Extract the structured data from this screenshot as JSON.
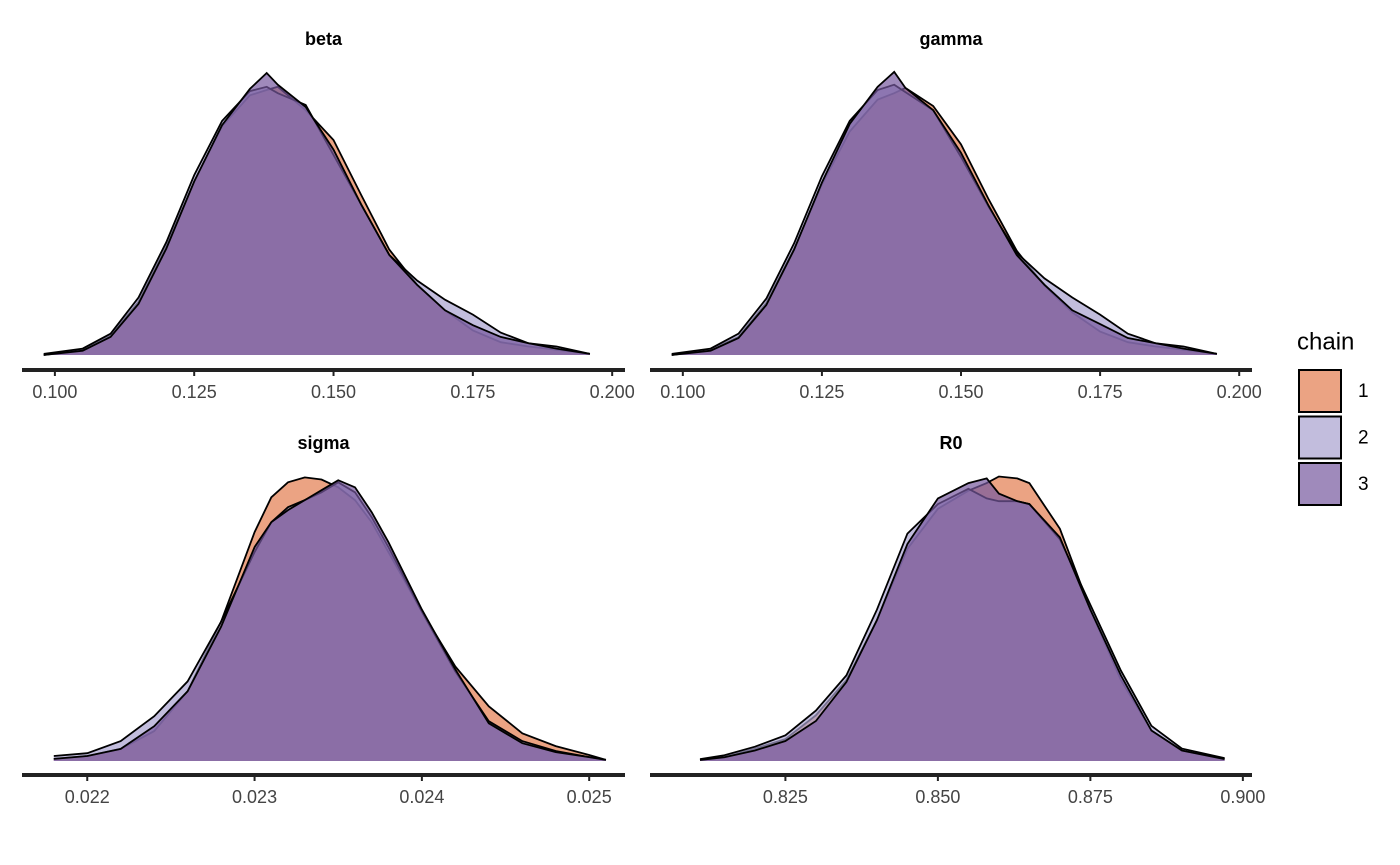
{
  "chart_data": [
    {
      "type": "density",
      "title": "beta",
      "x": [
        0.098,
        0.105,
        0.11,
        0.115,
        0.12,
        0.125,
        0.13,
        0.135,
        0.138,
        0.14,
        0.145,
        0.15,
        0.155,
        0.16,
        0.165,
        0.17,
        0.175,
        0.18,
        0.185,
        0.19,
        0.196
      ],
      "series": [
        {
          "values": [
            0,
            0.5,
            1.8,
            5.0,
            10.2,
            16.3,
            21.5,
            24.4,
            24.9,
            25.2,
            23.0,
            20.2,
            15.0,
            9.9,
            6.6,
            4.2,
            2.3,
            1.2,
            0.8,
            0.5,
            0.1
          ]
        },
        {
          "values": [
            0.1,
            0.6,
            2.0,
            5.4,
            10.6,
            16.9,
            22.0,
            24.8,
            25.2,
            24.6,
            23.5,
            18.8,
            14.1,
            9.4,
            7.0,
            5.2,
            3.8,
            2.1,
            1.1,
            0.8,
            0.1
          ]
        },
        {
          "values": [
            0,
            0.4,
            1.7,
            4.8,
            10.0,
            16.3,
            21.6,
            25.0,
            26.5,
            25.4,
            23.3,
            19.3,
            14.1,
            9.4,
            6.6,
            4.2,
            2.8,
            1.7,
            1.1,
            0.6,
            0.1
          ]
        }
      ],
      "xlim": [
        0.0941,
        0.2023
      ],
      "xticks": [
        {
          "value": 0.1,
          "label": "0.100"
        },
        0.125,
        {
          "value": 0.15,
          "label": "0.150"
        },
        0.175,
        {
          "value": 0.2,
          "label": "0.200"
        }
      ],
      "ylim": [
        0,
        28
      ]
    },
    {
      "type": "density",
      "title": "gamma",
      "x": [
        0.098,
        0.105,
        0.11,
        0.115,
        0.12,
        0.125,
        0.13,
        0.135,
        0.138,
        0.14,
        0.145,
        0.15,
        0.155,
        0.16,
        0.165,
        0.17,
        0.175,
        0.18,
        0.185,
        0.19,
        0.196
      ],
      "series": [
        {
          "values": [
            0,
            0.5,
            1.7,
            4.9,
            10.0,
            16.0,
            21.0,
            24.0,
            24.6,
            25.1,
            23.4,
            19.8,
            14.6,
            9.8,
            6.5,
            4.0,
            2.2,
            1.2,
            0.8,
            0.5,
            0.1
          ]
        },
        {
          "values": [
            0.1,
            0.6,
            2.0,
            5.3,
            10.5,
            16.8,
            22.0,
            24.9,
            25.4,
            24.7,
            23.0,
            18.6,
            13.9,
            9.6,
            7.2,
            5.4,
            3.8,
            2.0,
            1.1,
            0.8,
            0.1
          ]
        },
        {
          "values": [
            0,
            0.4,
            1.6,
            4.7,
            9.9,
            16.2,
            21.7,
            25.2,
            26.6,
            25.1,
            23.0,
            19.0,
            14.0,
            9.4,
            6.6,
            4.2,
            2.9,
            1.6,
            1.1,
            0.6,
            0.1
          ]
        }
      ],
      "xlim": [
        0.0941,
        0.2023
      ],
      "xticks": [
        {
          "value": 0.1,
          "label": "0.100"
        },
        0.125,
        {
          "value": 0.15,
          "label": "0.150"
        },
        0.175,
        {
          "value": 0.2,
          "label": "0.200"
        }
      ],
      "ylim": [
        0,
        28
      ]
    },
    {
      "type": "density",
      "title": "sigma",
      "x": [
        0.0218,
        0.022,
        0.0222,
        0.0224,
        0.0226,
        0.0228,
        0.023,
        0.0231,
        0.0232,
        0.0233,
        0.0234,
        0.0235,
        0.0236,
        0.0237,
        0.0238,
        0.024,
        0.0242,
        0.0244,
        0.0246,
        0.0248,
        0.025,
        0.0251
      ],
      "series": [
        {
          "values": [
            6,
            14,
            34,
            84,
            196,
            392,
            644,
            742,
            784,
            798,
            792,
            770,
            734,
            672,
            588,
            420,
            266,
            154,
            78,
            42,
            17,
            3
          ]
        },
        {
          "values": [
            14,
            22,
            56,
            126,
            224,
            392,
            588,
            672,
            714,
            734,
            756,
            784,
            756,
            686,
            602,
            420,
            252,
            112,
            56,
            28,
            11,
            3
          ]
        },
        {
          "values": [
            6,
            14,
            34,
            98,
            196,
            378,
            602,
            672,
            706,
            734,
            762,
            790,
            770,
            700,
            616,
            426,
            258,
            106,
            50,
            25,
            11,
            3
          ]
        }
      ],
      "xlim": [
        0.02161,
        0.025214
      ],
      "xticks": [
        0.022,
        0.023,
        0.024,
        0.025
      ],
      "ylim": [
        0,
        830
      ]
    },
    {
      "type": "density",
      "title": "R0",
      "x": [
        0.811,
        0.815,
        0.82,
        0.825,
        0.83,
        0.835,
        0.84,
        0.845,
        0.85,
        0.855,
        0.858,
        0.86,
        0.863,
        0.865,
        0.87,
        0.875,
        0.88,
        0.885,
        0.89,
        0.897
      ],
      "series": [
        {
          "values": [
            0.1,
            0.4,
            1.3,
            2.3,
            4.8,
            8.5,
            14.8,
            22.3,
            26.5,
            28.4,
            29.2,
            29.9,
            29.7,
            29.2,
            24.4,
            15.9,
            8.5,
            3.2,
            1.1,
            0.2
          ]
        },
        {
          "values": [
            0.2,
            0.6,
            1.5,
            2.7,
            5.3,
            9.0,
            15.9,
            23.9,
            27.0,
            28.6,
            27.6,
            27.3,
            27.3,
            27.0,
            23.3,
            16.4,
            9.5,
            3.7,
            1.3,
            0.3
          ]
        },
        {
          "values": [
            0.1,
            0.4,
            1.1,
            2.1,
            4.2,
            8.3,
            14.8,
            22.8,
            27.6,
            29.2,
            29.7,
            28.1,
            27.3,
            27.0,
            23.5,
            15.9,
            9.0,
            3.2,
            1.1,
            0.2
          ]
        }
      ],
      "xlim": [
        0.8028,
        0.9015
      ],
      "xticks": [
        0.825,
        {
          "value": 0.85,
          "label": "0.850"
        },
        0.875,
        {
          "value": 0.9,
          "label": "0.900"
        }
      ],
      "ylim": [
        0,
        31
      ]
    }
  ],
  "legend": {
    "title": "chain",
    "position": "right",
    "entries": [
      {
        "name": "1",
        "color": "#e27c4f"
      },
      {
        "name": "2",
        "color": "#a8a1ce"
      },
      {
        "name": "3",
        "color": "#76599e"
      }
    ]
  }
}
